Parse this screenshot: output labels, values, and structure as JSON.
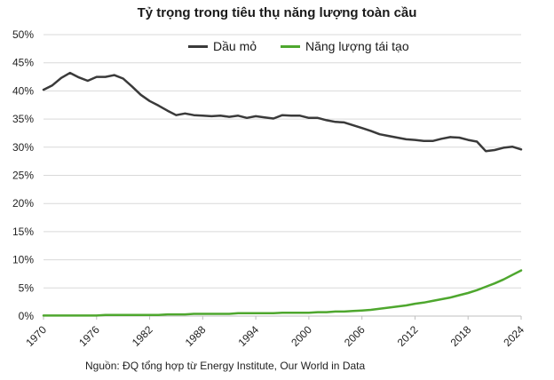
{
  "title": "Tỷ trọng trong tiêu thụ năng lượng toàn cầu",
  "source": "Nguồn: ĐQ tổng hợp từ Energy Institute, Our World in Data",
  "legend": [
    {
      "label": "Dầu mỏ",
      "color": "#3a3a3a"
    },
    {
      "label": "Năng lượng tái tạo",
      "color": "#4ea72e"
    }
  ],
  "chart_data": {
    "type": "line",
    "title": "Tỷ trọng trong tiêu thụ năng lượng toàn cầu",
    "xlabel": "",
    "ylabel": "",
    "xlim": [
      1970,
      2024
    ],
    "ylim": [
      0,
      50
    ],
    "y_ticks": [
      "0%",
      "5%",
      "10%",
      "15%",
      "20%",
      "25%",
      "30%",
      "35%",
      "40%",
      "45%",
      "50%"
    ],
    "x_ticks": [
      "1970",
      "1976",
      "1982",
      "1988",
      "1994",
      "2000",
      "2006",
      "2012",
      "2018",
      "2024"
    ],
    "grid": true,
    "legend_position": "top",
    "x": [
      1970,
      1971,
      1972,
      1973,
      1974,
      1975,
      1976,
      1977,
      1978,
      1979,
      1980,
      1981,
      1982,
      1983,
      1984,
      1985,
      1986,
      1987,
      1988,
      1989,
      1990,
      1991,
      1992,
      1993,
      1994,
      1995,
      1996,
      1997,
      1998,
      1999,
      2000,
      2001,
      2002,
      2003,
      2004,
      2005,
      2006,
      2007,
      2008,
      2009,
      2010,
      2011,
      2012,
      2013,
      2014,
      2015,
      2016,
      2017,
      2018,
      2019,
      2020,
      2021,
      2022,
      2023,
      2024
    ],
    "series": [
      {
        "name": "Dầu mỏ",
        "color": "#3a3a3a",
        "values": [
          40.2,
          41.0,
          42.3,
          43.2,
          42.4,
          41.8,
          42.5,
          42.5,
          42.8,
          42.2,
          40.8,
          39.3,
          38.2,
          37.4,
          36.5,
          35.7,
          36.0,
          35.7,
          35.6,
          35.5,
          35.6,
          35.4,
          35.6,
          35.2,
          35.5,
          35.3,
          35.1,
          35.7,
          35.6,
          35.6,
          35.2,
          35.2,
          34.8,
          34.5,
          34.4,
          33.9,
          33.4,
          32.9,
          32.3,
          32.0,
          31.7,
          31.4,
          31.3,
          31.1,
          31.1,
          31.5,
          31.8,
          31.7,
          31.3,
          31.0,
          29.3,
          29.5,
          29.9,
          30.1,
          29.6
        ]
      },
      {
        "name": "Năng lượng tái tạo",
        "color": "#4ea72e",
        "values": [
          0.1,
          0.1,
          0.1,
          0.1,
          0.1,
          0.1,
          0.1,
          0.2,
          0.2,
          0.2,
          0.2,
          0.2,
          0.2,
          0.2,
          0.3,
          0.3,
          0.3,
          0.4,
          0.4,
          0.4,
          0.4,
          0.4,
          0.5,
          0.5,
          0.5,
          0.5,
          0.5,
          0.6,
          0.6,
          0.6,
          0.6,
          0.7,
          0.7,
          0.8,
          0.8,
          0.9,
          1.0,
          1.1,
          1.3,
          1.5,
          1.7,
          1.9,
          2.2,
          2.4,
          2.7,
          3.0,
          3.3,
          3.7,
          4.1,
          4.6,
          5.2,
          5.8,
          6.5,
          7.3,
          8.1
        ]
      }
    ]
  }
}
